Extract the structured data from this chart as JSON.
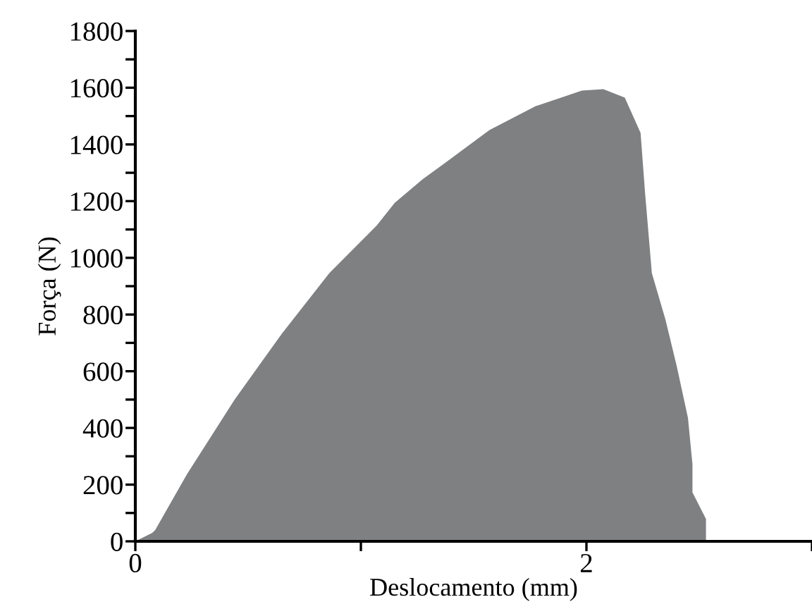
{
  "chart_data": {
    "type": "area",
    "xlabel": "Deslocamento (mm)",
    "ylabel": "Força (N)",
    "series": [
      {
        "color": "#7f8082",
        "x": [
          0,
          0.075,
          0.088,
          0.23,
          0.44,
          0.65,
          0.86,
          1.07,
          1.15,
          1.275,
          1.36,
          1.57,
          1.775,
          1.98,
          2.075,
          2.17,
          2.24,
          2.26,
          2.29,
          2.35,
          2.4,
          2.45,
          2.47,
          2.47,
          2.53,
          2.53
        ],
        "values": [
          0,
          30,
          40,
          238,
          500,
          733,
          946,
          1114,
          1194,
          1278,
          1327,
          1451,
          1535,
          1590,
          1595,
          1565,
          1441,
          1228,
          946,
          783,
          619,
          436,
          272,
          173,
          79,
          0
        ]
      }
    ],
    "xlim": [
      0,
      3
    ],
    "xticks": [
      0,
      {
        "value": 1,
        "label": null
      },
      2,
      {
        "value": 3,
        "label": null
      }
    ],
    "ylim": [
      0,
      1800
    ],
    "yticks": [
      0,
      {
        "value": 100,
        "label": null
      },
      200,
      {
        "value": 300,
        "label": null
      },
      400,
      {
        "value": 500,
        "label": null
      },
      600,
      {
        "value": 700,
        "label": null
      },
      800,
      {
        "value": 900,
        "label": null
      },
      1000,
      {
        "value": 1100,
        "label": null
      },
      1200,
      {
        "value": 1300,
        "label": null
      },
      1400,
      {
        "value": 1500,
        "label": null
      },
      1600,
      {
        "value": 1700,
        "label": null
      },
      1800
    ],
    "grid": false,
    "legend": false
  }
}
